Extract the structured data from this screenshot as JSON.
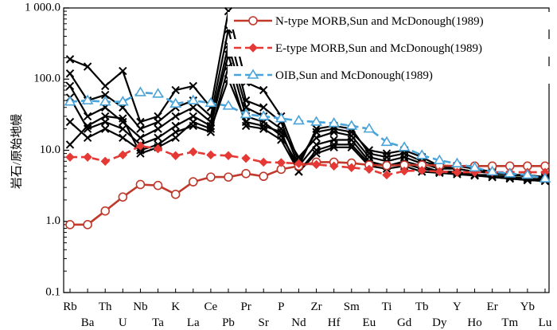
{
  "chart_data": {
    "type": "line",
    "y_scale": "log",
    "ylim": [
      0.1,
      1000
    ],
    "yticks": [
      "0.1",
      "1.0",
      "10.0",
      "100.0",
      "1 000.0"
    ],
    "ylabel": "岩石/原始地幔",
    "xlabel": "",
    "title": "",
    "grid": false,
    "legend_position": "top-right",
    "categories": [
      "Rb",
      "Ba",
      "Th",
      "U",
      "Nb",
      "Ta",
      "K",
      "La",
      "Ce",
      "Pb",
      "Pr",
      "Sr",
      "P",
      "Nd",
      "Zr",
      "Hf",
      "Sm",
      "Eu",
      "Ti",
      "Gd",
      "Tb",
      "Dy",
      "Y",
      "Ho",
      "Er",
      "Tm",
      "Yb",
      "Lu"
    ],
    "series": [
      {
        "name": "N-type MORB,Sun and McDonough(1989)",
        "color": "#c0392b",
        "marker": "open-circle",
        "dash": "solid",
        "values": [
          0.9,
          0.9,
          1.4,
          2.2,
          3.3,
          3.2,
          2.4,
          3.6,
          4.2,
          4.2,
          4.7,
          4.3,
          5.4,
          6.0,
          6.8,
          6.8,
          6.6,
          6.2,
          6.1,
          6.2,
          6.2,
          6.1,
          6.0,
          6.0,
          6.0,
          6.0,
          6.0,
          6.0
        ]
      },
      {
        "name": "E-type MORB,Sun and McDonough(1989)",
        "color": "#e53935",
        "marker": "diamond",
        "dash": "dash",
        "values": [
          8.0,
          8.0,
          7.0,
          8.6,
          11.5,
          10.5,
          8.4,
          9.5,
          8.6,
          8.4,
          7.7,
          6.8,
          6.7,
          6.5,
          6.3,
          6.0,
          5.7,
          5.4,
          4.5,
          5.1,
          5.2,
          5.0,
          4.9,
          4.9,
          4.9,
          4.9,
          4.9,
          4.9
        ]
      },
      {
        "name": "OIB,Sun and McDonough(1989)",
        "color": "#4aa3d9",
        "marker": "open-triangle",
        "dash": "dash",
        "values": [
          48,
          50,
          48,
          48,
          65,
          62,
          45,
          50,
          46,
          42,
          32,
          30,
          28,
          26,
          25,
          24,
          22,
          20,
          13,
          11,
          8.5,
          7.2,
          6.5,
          5.7,
          5.0,
          4.7,
          4.5,
          4.0
        ]
      },
      {
        "name": "",
        "color": "#000000",
        "marker": "x",
        "dash": "solid",
        "values": [
          190,
          150,
          80,
          130,
          25,
          30,
          70,
          80,
          40,
          900,
          90,
          70,
          30,
          7,
          18,
          20,
          18,
          10,
          9,
          10,
          8,
          6,
          6,
          5.5,
          5,
          4.5,
          4.5,
          4.2
        ]
      },
      {
        "name": "",
        "color": "#000000",
        "marker": "x",
        "dash": "solid",
        "values": [
          120,
          50,
          60,
          40,
          20,
          25,
          40,
          50,
          30,
          500,
          50,
          40,
          25,
          6,
          20,
          22,
          20,
          9,
          8,
          9,
          7,
          6,
          5.5,
          5,
          5,
          4.5,
          4.5,
          4
        ]
      },
      {
        "name": "",
        "color": "#000000",
        "marker": "x",
        "dash": "solid",
        "values": [
          80,
          30,
          40,
          25,
          15,
          20,
          30,
          40,
          25,
          300,
          40,
          30,
          20,
          8,
          15,
          18,
          16,
          8,
          7,
          8,
          6.5,
          5.5,
          5.5,
          5,
          4.8,
          4.5,
          4.3,
          4.2
        ]
      },
      {
        "name": "",
        "color": "#000000",
        "marker": "x",
        "dash": "solid",
        "values": [
          55,
          20,
          25,
          20,
          12,
          15,
          22,
          30,
          22,
          220,
          30,
          25,
          16,
          6,
          12,
          14,
          14,
          7,
          6,
          7,
          6,
          5,
          5,
          4.5,
          4.5,
          4.2,
          4,
          3.9
        ]
      },
      {
        "name": "",
        "color": "#000000",
        "marker": "x",
        "dash": "solid",
        "values": [
          25,
          15,
          20,
          15,
          10,
          12,
          18,
          22,
          18,
          150,
          22,
          20,
          14,
          5,
          10,
          12,
          12,
          6.5,
          6,
          6.5,
          5.5,
          5,
          4.8,
          4.5,
          4.2,
          4,
          3.8,
          3.7
        ]
      },
      {
        "name": "",
        "color": "#000000",
        "marker": "x",
        "dash": "solid",
        "values": [
          12,
          22,
          30,
          28,
          9,
          11,
          15,
          25,
          20,
          100,
          25,
          22,
          18,
          5,
          9,
          11,
          11,
          6,
          5.5,
          6,
          5,
          4.8,
          4.6,
          4.4,
          4.2,
          4,
          3.8,
          3.7
        ]
      }
    ]
  }
}
